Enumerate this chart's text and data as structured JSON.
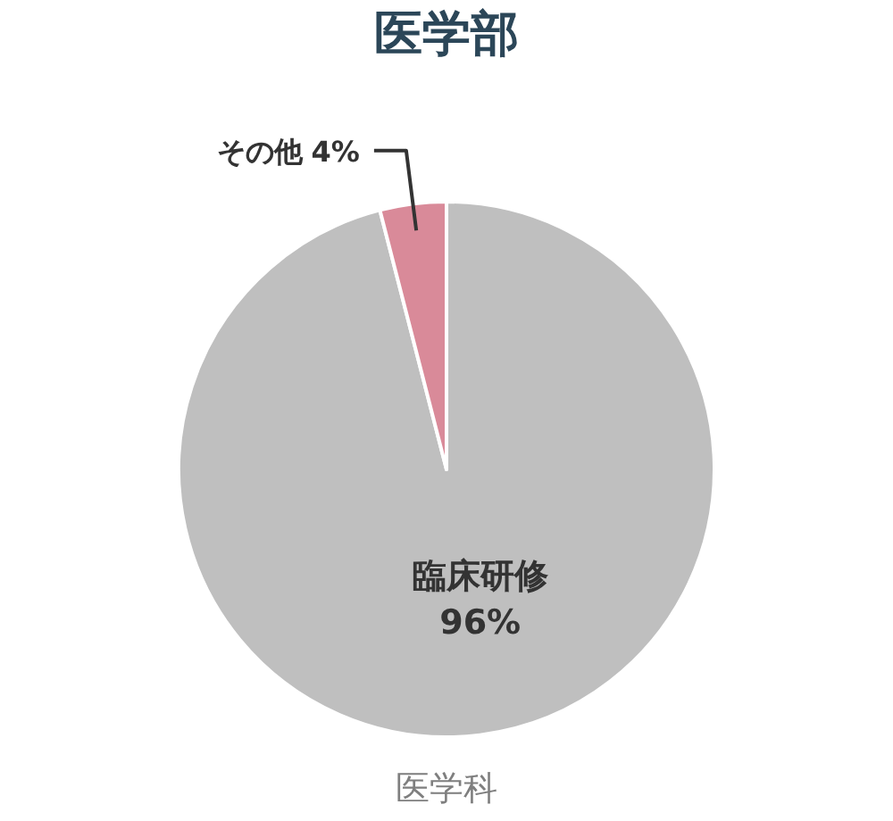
{
  "chart_data": {
    "type": "pie",
    "title": "医学部",
    "categories": [
      "臨床研修",
      "その他"
    ],
    "values": [
      96,
      4
    ],
    "colors": [
      "#bfbfbf",
      "#d98a99"
    ],
    "value_labels": [
      "96%",
      "4%"
    ],
    "annotations": [
      "医学科"
    ]
  }
}
